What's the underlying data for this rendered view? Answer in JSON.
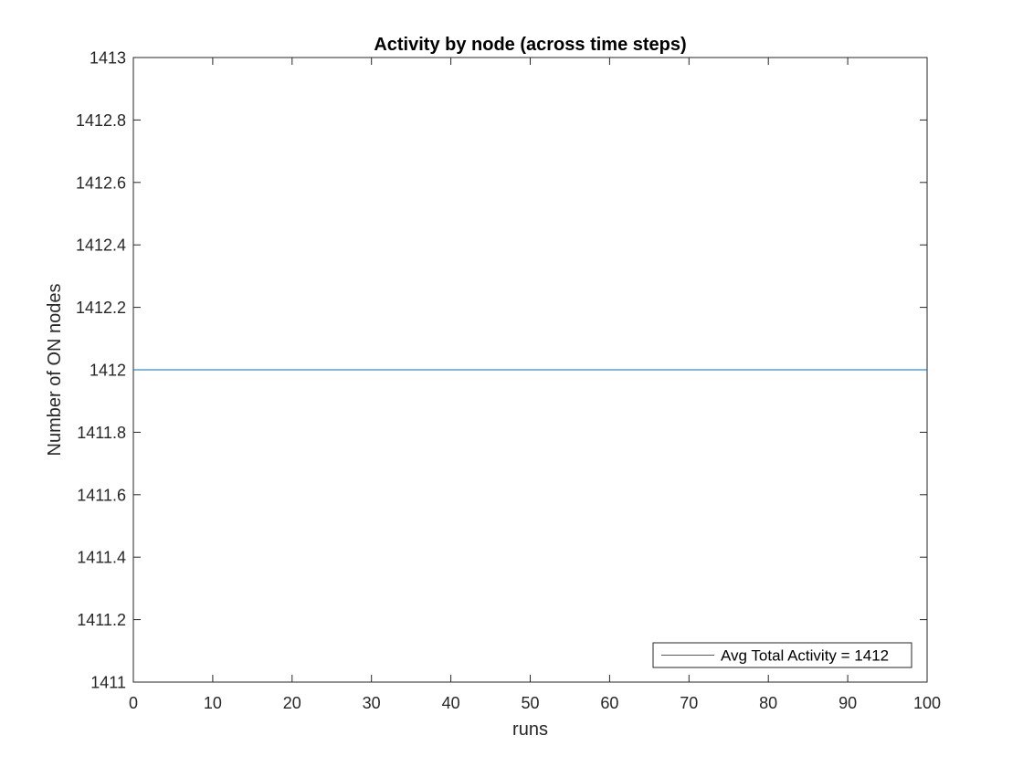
{
  "chart_data": {
    "type": "line",
    "title": "Activity by node (across time steps)",
    "xlabel": "runs",
    "ylabel": "Number of ON nodes",
    "xlim": [
      0,
      100
    ],
    "ylim": [
      1411,
      1413
    ],
    "xticks": [
      0,
      10,
      20,
      30,
      40,
      50,
      60,
      70,
      80,
      90,
      100
    ],
    "yticks": [
      1411,
      1411.2,
      1411.4,
      1411.6,
      1411.8,
      1412,
      1412.2,
      1412.4,
      1412.6,
      1412.8,
      1413
    ],
    "ytick_labels": [
      "1411",
      "1411.2",
      "1411.4",
      "1411.6",
      "1411.8",
      "1412",
      "1412.2",
      "1412.4",
      "1412.6",
      "1412.8",
      "1413"
    ],
    "grid": false,
    "legend_position": "bottom-right",
    "series": [
      {
        "name": "Avg Total Activity = 1412",
        "color": "#0072BD",
        "x": [
          0,
          100
        ],
        "y": [
          1412,
          1412
        ]
      }
    ]
  }
}
